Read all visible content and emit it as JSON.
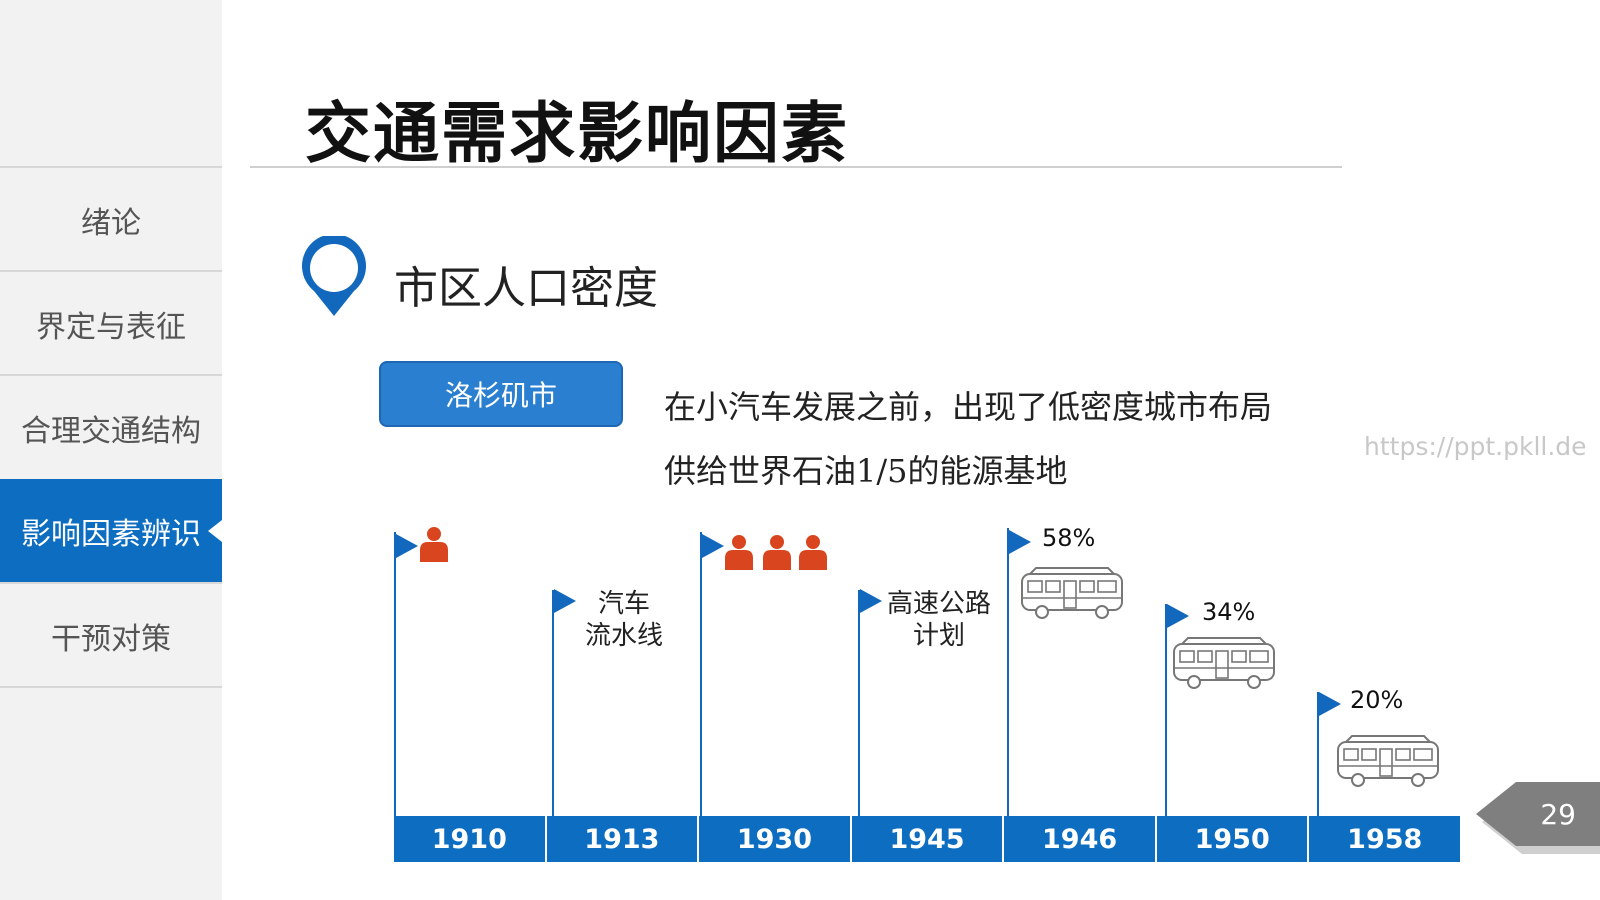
{
  "sidebar": {
    "items": [
      {
        "label": "绪论"
      },
      {
        "label": "界定与表征"
      },
      {
        "label": "合理交通结构"
      },
      {
        "label": "影响因素辨识"
      },
      {
        "label": "干预对策"
      }
    ]
  },
  "page_title": "交通需求影响因素",
  "section": {
    "subtitle": "市区人口密度",
    "city_button": "洛杉矶市",
    "desc_line1": "在小汽车发展之前，出现了低密度城市布局",
    "desc_line2": "供给世界石油1/5的能源基地"
  },
  "watermark": "https://ppt.pkll.de",
  "timeline": {
    "years": [
      "1910",
      "1913",
      "1930",
      "1945",
      "1946",
      "1950",
      "1958"
    ],
    "events": [
      {
        "year": "1910",
        "label": "",
        "people": 1
      },
      {
        "year": "1913",
        "label_line1": "汽车",
        "label_line2": "流水线"
      },
      {
        "year": "1930",
        "label": "",
        "people": 3
      },
      {
        "year": "1945",
        "label_line1": "高速公路",
        "label_line2": "计划"
      },
      {
        "year": "1946",
        "percent": "58%"
      },
      {
        "year": "1950",
        "percent": "34%"
      },
      {
        "year": "1958",
        "percent": "20%"
      }
    ]
  },
  "colors": {
    "accent": "#0c6dc1",
    "person": "#d9451f",
    "page_badge": "#7f7f7f"
  },
  "page_number": "29"
}
